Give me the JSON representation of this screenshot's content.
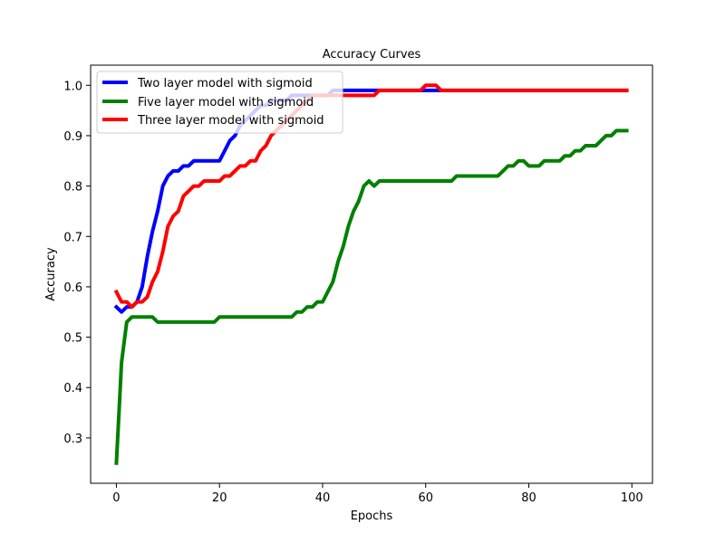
{
  "chart_data": {
    "type": "line",
    "title": "Accuracy Curves",
    "xlabel": "Epochs",
    "ylabel": "Accuracy",
    "xlim": [
      -5,
      104
    ],
    "ylim": [
      0.21,
      1.04
    ],
    "xticks": [
      0,
      20,
      40,
      60,
      80,
      100
    ],
    "yticks": [
      0.3,
      0.4,
      0.5,
      0.6,
      0.7,
      0.8,
      0.9,
      1.0
    ],
    "xtick_labels": [
      "0",
      "20",
      "40",
      "60",
      "80",
      "100"
    ],
    "ytick_labels": [
      "0.3",
      "0.4",
      "0.5",
      "0.6",
      "0.7",
      "0.8",
      "0.9",
      "1.0"
    ],
    "grid": false,
    "legend_position": "top-left",
    "x": [
      0,
      1,
      2,
      3,
      4,
      5,
      6,
      7,
      8,
      9,
      10,
      11,
      12,
      13,
      14,
      15,
      16,
      17,
      18,
      19,
      20,
      21,
      22,
      23,
      24,
      25,
      26,
      27,
      28,
      29,
      30,
      31,
      32,
      33,
      34,
      35,
      36,
      37,
      38,
      39,
      40,
      41,
      42,
      43,
      44,
      45,
      46,
      47,
      48,
      49,
      50,
      51,
      52,
      53,
      54,
      55,
      56,
      57,
      58,
      59,
      60,
      61,
      62,
      63,
      64,
      65,
      66,
      67,
      68,
      69,
      70,
      71,
      72,
      73,
      74,
      75,
      76,
      77,
      78,
      79,
      80,
      81,
      82,
      83,
      84,
      85,
      86,
      87,
      88,
      89,
      90,
      91,
      92,
      93,
      94,
      95,
      96,
      97,
      98,
      99
    ],
    "series": [
      {
        "name": "Two layer model with sigmoid",
        "color": "#0000ff",
        "values": [
          0.56,
          0.55,
          0.56,
          0.56,
          0.57,
          0.6,
          0.66,
          0.71,
          0.75,
          0.8,
          0.82,
          0.83,
          0.83,
          0.84,
          0.84,
          0.85,
          0.85,
          0.85,
          0.85,
          0.85,
          0.85,
          0.87,
          0.89,
          0.9,
          0.92,
          0.93,
          0.94,
          0.95,
          0.96,
          0.96,
          0.97,
          0.97,
          0.97,
          0.97,
          0.98,
          0.98,
          0.98,
          0.98,
          0.98,
          0.98,
          0.98,
          0.98,
          0.99,
          0.99,
          0.99,
          0.99,
          0.99,
          0.99,
          0.99,
          0.99,
          0.99,
          0.99,
          0.99,
          0.99,
          0.99,
          0.99,
          0.99,
          0.99,
          0.99,
          0.99,
          0.99,
          0.99,
          0.99,
          0.99,
          0.99,
          0.99,
          0.99,
          0.99,
          0.99,
          0.99,
          0.99,
          0.99,
          0.99,
          0.99,
          0.99,
          0.99,
          0.99,
          0.99,
          0.99,
          0.99,
          0.99,
          0.99,
          0.99,
          0.99,
          0.99,
          0.99,
          0.99,
          0.99,
          0.99,
          0.99,
          0.99,
          0.99,
          0.99,
          0.99,
          0.99,
          0.99,
          0.99,
          0.99,
          0.99,
          0.99
        ]
      },
      {
        "name": "Five layer model with sigmoid",
        "color": "#008000",
        "values": [
          0.25,
          0.45,
          0.53,
          0.54,
          0.54,
          0.54,
          0.54,
          0.54,
          0.53,
          0.53,
          0.53,
          0.53,
          0.53,
          0.53,
          0.53,
          0.53,
          0.53,
          0.53,
          0.53,
          0.53,
          0.54,
          0.54,
          0.54,
          0.54,
          0.54,
          0.54,
          0.54,
          0.54,
          0.54,
          0.54,
          0.54,
          0.54,
          0.54,
          0.54,
          0.54,
          0.55,
          0.55,
          0.56,
          0.56,
          0.57,
          0.57,
          0.59,
          0.61,
          0.65,
          0.68,
          0.72,
          0.75,
          0.77,
          0.8,
          0.81,
          0.8,
          0.81,
          0.81,
          0.81,
          0.81,
          0.81,
          0.81,
          0.81,
          0.81,
          0.81,
          0.81,
          0.81,
          0.81,
          0.81,
          0.81,
          0.81,
          0.82,
          0.82,
          0.82,
          0.82,
          0.82,
          0.82,
          0.82,
          0.82,
          0.82,
          0.83,
          0.84,
          0.84,
          0.85,
          0.85,
          0.84,
          0.84,
          0.84,
          0.85,
          0.85,
          0.85,
          0.85,
          0.86,
          0.86,
          0.87,
          0.87,
          0.88,
          0.88,
          0.88,
          0.89,
          0.9,
          0.9,
          0.91,
          0.91,
          0.91
        ]
      },
      {
        "name": "Three layer model with sigmoid",
        "color": "#ff0000",
        "values": [
          0.59,
          0.57,
          0.57,
          0.56,
          0.57,
          0.57,
          0.58,
          0.61,
          0.63,
          0.67,
          0.72,
          0.74,
          0.75,
          0.78,
          0.79,
          0.8,
          0.8,
          0.81,
          0.81,
          0.81,
          0.81,
          0.82,
          0.82,
          0.83,
          0.84,
          0.84,
          0.85,
          0.85,
          0.87,
          0.88,
          0.9,
          0.91,
          0.92,
          0.93,
          0.94,
          0.95,
          0.96,
          0.97,
          0.98,
          0.98,
          0.98,
          0.98,
          0.98,
          0.98,
          0.98,
          0.98,
          0.98,
          0.98,
          0.98,
          0.98,
          0.98,
          0.99,
          0.99,
          0.99,
          0.99,
          0.99,
          0.99,
          0.99,
          0.99,
          0.99,
          1.0,
          1.0,
          1.0,
          0.99,
          0.99,
          0.99,
          0.99,
          0.99,
          0.99,
          0.99,
          0.99,
          0.99,
          0.99,
          0.99,
          0.99,
          0.99,
          0.99,
          0.99,
          0.99,
          0.99,
          0.99,
          0.99,
          0.99,
          0.99,
          0.99,
          0.99,
          0.99,
          0.99,
          0.99,
          0.99,
          0.99,
          0.99,
          0.99,
          0.99,
          0.99,
          0.99,
          0.99,
          0.99,
          0.99,
          0.99
        ]
      }
    ]
  }
}
